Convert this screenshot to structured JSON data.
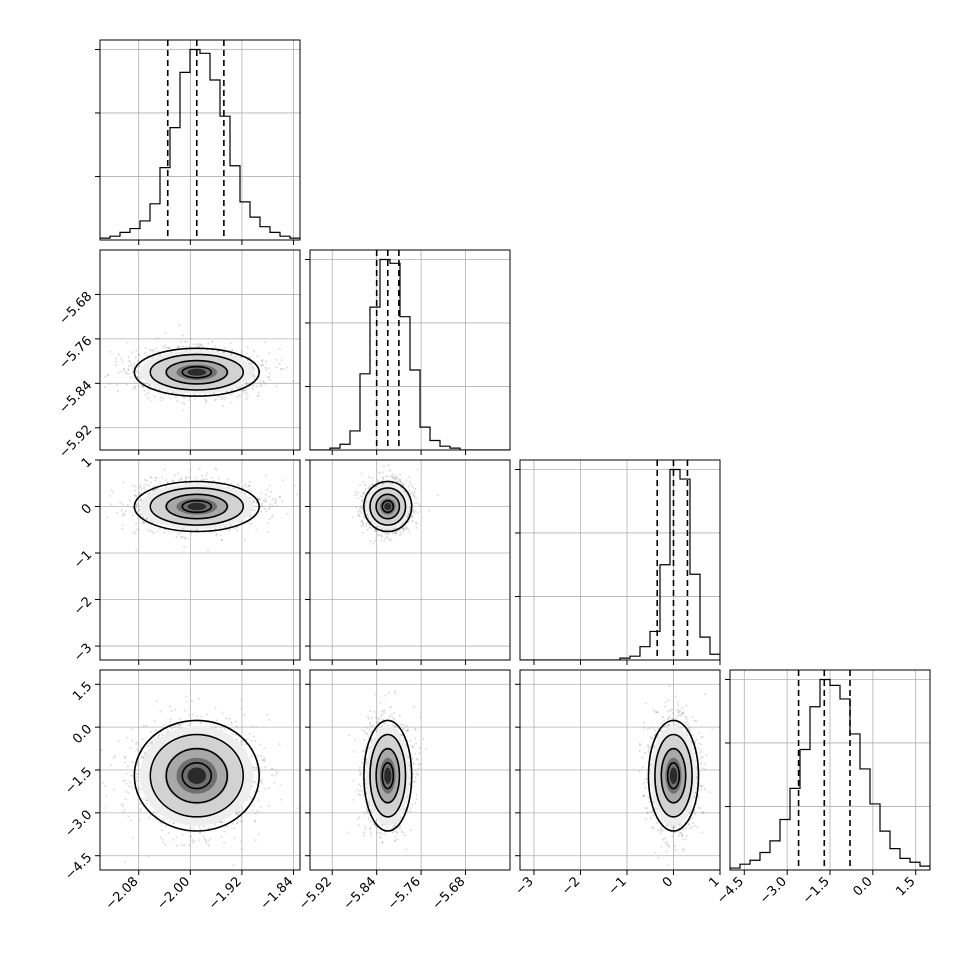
{
  "chart_data": {
    "type": "corner",
    "title": "",
    "style": {
      "grid": true,
      "hist_color": "#000000",
      "contour_color": "#000000",
      "scatter_color": "#9a9a9a",
      "quantile_line_style": "dashed"
    },
    "parameters": [
      {
        "label": "",
        "range": [
          -2.14,
          -1.83
        ],
        "ticks": [
          -2.08,
          -2.0,
          -1.92,
          -1.84
        ],
        "tick_labels": [
          "−2.08",
          "−2.00",
          "−1.92",
          "−1.84"
        ],
        "quantiles": [
          -2.035,
          -1.99,
          -1.948
        ],
        "hist_edges": [
          -2.14,
          -1.83
        ],
        "hist_counts": [
          1,
          2,
          4,
          6,
          10,
          19,
          38,
          59,
          88,
          100,
          98,
          84,
          65,
          39,
          20,
          12,
          7,
          4,
          2,
          1
        ],
        "dist": {
          "mean": -1.99,
          "sd": 0.045
        }
      },
      {
        "label": "",
        "range": [
          -5.96,
          -5.6
        ],
        "ticks": [
          -5.92,
          -5.84,
          -5.76,
          -5.68
        ],
        "tick_labels": [
          "−5.92",
          "−5.84",
          "−5.76",
          "−5.68"
        ],
        "quantiles": [
          -5.84,
          -5.82,
          -5.8
        ],
        "hist_edges": [
          -5.96,
          -5.6
        ],
        "hist_counts": [
          0,
          0,
          1,
          3,
          10,
          40,
          75,
          100,
          98,
          70,
          42,
          12,
          5,
          2,
          1,
          0,
          0,
          0,
          0,
          0
        ],
        "dist": {
          "mean": -5.82,
          "sd": 0.02
        }
      },
      {
        "label": "",
        "range": [
          -3.3,
          1.0
        ],
        "ticks": [
          -3,
          -2,
          -1,
          0,
          1
        ],
        "tick_labels": [
          "−3",
          "−2",
          "−1",
          "0",
          "1"
        ],
        "quantiles": [
          -0.35,
          0.0,
          0.3
        ],
        "hist_edges": [
          -3.3,
          1.0
        ],
        "hist_counts": [
          0,
          0,
          0,
          0,
          0,
          0,
          0,
          0,
          0,
          0,
          1,
          2,
          7,
          15,
          50,
          100,
          95,
          45,
          12,
          3
        ],
        "dist": {
          "mean": 0.0,
          "sd": 0.25
        }
      },
      {
        "label": "",
        "range": [
          -5.0,
          2.0
        ],
        "ticks": [
          -4.5,
          -3.0,
          -1.5,
          0.0,
          1.5
        ],
        "tick_labels": [
          "−4.5",
          "−3.0",
          "−1.5",
          "0.0",
          "1.5"
        ],
        "quantiles": [
          -2.6,
          -1.7,
          -0.8
        ],
        "hist_edges": [
          -5.0,
          2.0
        ],
        "hist_counts": [
          1,
          3,
          5,
          9,
          15,
          26,
          42,
          62,
          84,
          98,
          95,
          88,
          70,
          52,
          34,
          20,
          11,
          6,
          4,
          2
        ],
        "dist": {
          "mean": -1.7,
          "sd": 0.9
        }
      }
    ],
    "pairs": [
      {
        "row": 1,
        "col": 0,
        "n_points": 1600
      },
      {
        "row": 2,
        "col": 0,
        "n_points": 1600
      },
      {
        "row": 2,
        "col": 1,
        "n_points": 1600
      },
      {
        "row": 3,
        "col": 0,
        "n_points": 1600
      },
      {
        "row": 3,
        "col": 1,
        "n_points": 1600
      },
      {
        "row": 3,
        "col": 2,
        "n_points": 1600
      }
    ]
  }
}
